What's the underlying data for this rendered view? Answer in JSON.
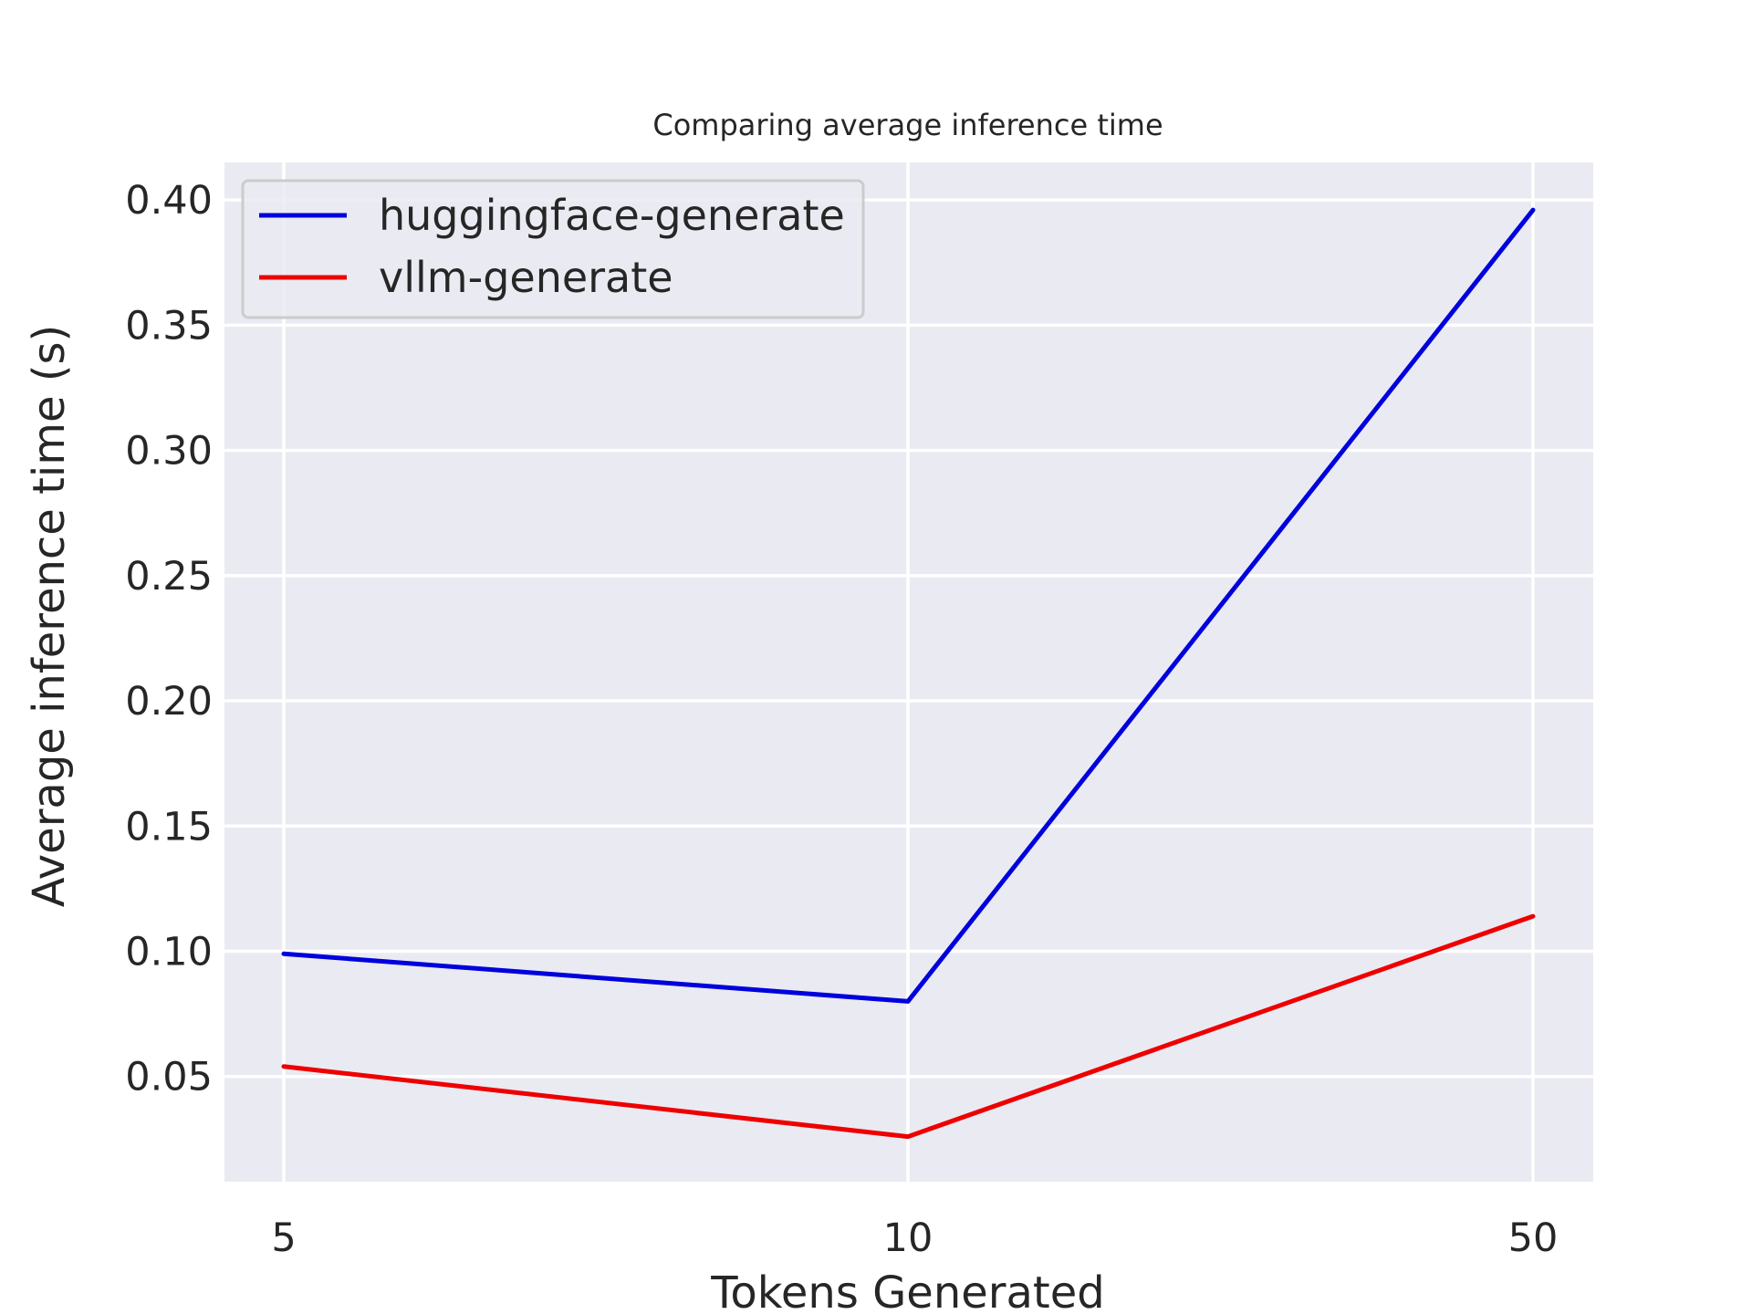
{
  "chart_data": {
    "type": "line",
    "title": "Comparing average inference time",
    "xlabel": "Tokens Generated",
    "ylabel": "Average inference time (s)",
    "categories": [
      "5",
      "10",
      "50"
    ],
    "x_scale": "categorical",
    "ylim": [
      0.008,
      0.415
    ],
    "yticks": [
      "0.05",
      "0.10",
      "0.15",
      "0.20",
      "0.25",
      "0.30",
      "0.35",
      "0.40"
    ],
    "grid": true,
    "background_color": "#eaeaf2",
    "legend_position": "top-left",
    "series": [
      {
        "name": "huggingface-generate",
        "color": "#0000dd",
        "values": [
          0.099,
          0.08,
          0.396
        ]
      },
      {
        "name": "vllm-generate",
        "color": "#ee0000",
        "values": [
          0.054,
          0.026,
          0.114
        ]
      }
    ]
  }
}
